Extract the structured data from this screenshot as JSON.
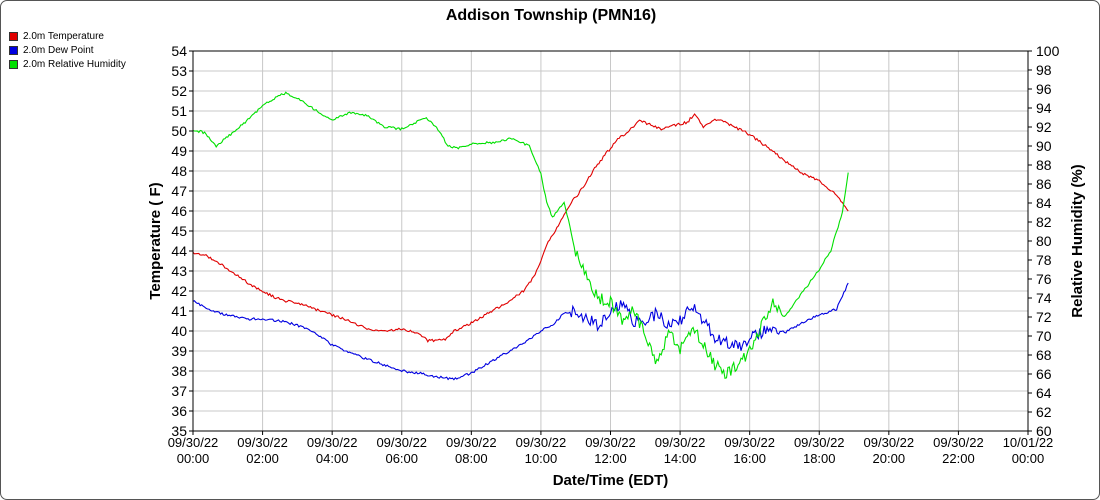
{
  "chart_data": {
    "type": "line",
    "title": "Addison Township (PMN16)",
    "xlabel": "Date/Time (EDT)",
    "ylabel": "Temperature ( F)",
    "y2label": "Relative Humidity (%)",
    "ylim": [
      35,
      54
    ],
    "y2lim": [
      60,
      100
    ],
    "xlim": [
      "2022-09-30T00:00",
      "2022-10-01T00:00"
    ],
    "grid": true,
    "legend_position": "top-left",
    "x_ticks": [
      {
        "l1": "09/30/22",
        "l2": "00:00",
        "t": "2022-09-30T00:00"
      },
      {
        "l1": "09/30/22",
        "l2": "02:00",
        "t": "2022-09-30T02:00"
      },
      {
        "l1": "09/30/22",
        "l2": "04:00",
        "t": "2022-09-30T04:00"
      },
      {
        "l1": "09/30/22",
        "l2": "06:00",
        "t": "2022-09-30T06:00"
      },
      {
        "l1": "09/30/22",
        "l2": "08:00",
        "t": "2022-09-30T08:00"
      },
      {
        "l1": "09/30/22",
        "l2": "10:00",
        "t": "2022-09-30T10:00"
      },
      {
        "l1": "09/30/22",
        "l2": "12:00",
        "t": "2022-09-30T12:00"
      },
      {
        "l1": "09/30/22",
        "l2": "14:00",
        "t": "2022-09-30T14:00"
      },
      {
        "l1": "09/30/22",
        "l2": "16:00",
        "t": "2022-09-30T16:00"
      },
      {
        "l1": "09/30/22",
        "l2": "18:00",
        "t": "2022-09-30T18:00"
      },
      {
        "l1": "09/30/22",
        "l2": "20:00",
        "t": "2022-09-30T20:00"
      },
      {
        "l1": "09/30/22",
        "l2": "22:00",
        "t": "2022-09-30T22:00"
      },
      {
        "l1": "10/01/22",
        "l2": "00:00",
        "t": "2022-10-01T00:00"
      }
    ],
    "y_ticks": [
      35,
      36,
      37,
      38,
      39,
      40,
      41,
      42,
      43,
      44,
      45,
      46,
      47,
      48,
      49,
      50,
      51,
      52,
      53,
      54
    ],
    "y2_ticks": [
      60,
      62,
      64,
      66,
      68,
      70,
      72,
      74,
      76,
      78,
      80,
      82,
      84,
      86,
      88,
      90,
      92,
      94,
      96,
      98,
      100
    ],
    "series": [
      {
        "name": "2.0m Temperature",
        "axis": "left",
        "color": "#e00000",
        "points": [
          [
            "2022-09-30T00:00",
            43.9
          ],
          [
            "2022-09-30T00:20",
            43.8
          ],
          [
            "2022-09-30T00:40",
            43.5
          ],
          [
            "2022-09-30T01:00",
            43.1
          ],
          [
            "2022-09-30T01:20",
            42.7
          ],
          [
            "2022-09-30T01:40",
            42.3
          ],
          [
            "2022-09-30T02:00",
            42.0
          ],
          [
            "2022-09-30T02:20",
            41.7
          ],
          [
            "2022-09-30T02:40",
            41.5
          ],
          [
            "2022-09-30T03:00",
            41.4
          ],
          [
            "2022-09-30T03:30",
            41.1
          ],
          [
            "2022-09-30T04:00",
            40.8
          ],
          [
            "2022-09-30T04:30",
            40.5
          ],
          [
            "2022-09-30T05:00",
            40.1
          ],
          [
            "2022-09-30T05:30",
            40.0
          ],
          [
            "2022-09-30T06:00",
            40.1
          ],
          [
            "2022-09-30T06:30",
            39.9
          ],
          [
            "2022-09-30T06:45",
            39.5
          ],
          [
            "2022-09-30T07:15",
            39.6
          ],
          [
            "2022-09-30T07:30",
            40.0
          ],
          [
            "2022-09-30T08:00",
            40.4
          ],
          [
            "2022-09-30T08:30",
            40.9
          ],
          [
            "2022-09-30T09:00",
            41.4
          ],
          [
            "2022-09-30T09:30",
            42.0
          ],
          [
            "2022-09-30T09:50",
            42.8
          ],
          [
            "2022-09-30T10:10",
            44.3
          ],
          [
            "2022-09-30T10:30",
            45.3
          ],
          [
            "2022-09-30T10:50",
            46.3
          ],
          [
            "2022-09-30T11:10",
            47.1
          ],
          [
            "2022-09-30T11:30",
            48.0
          ],
          [
            "2022-09-30T11:50",
            48.8
          ],
          [
            "2022-09-30T12:10",
            49.5
          ],
          [
            "2022-09-30T12:30",
            50.0
          ],
          [
            "2022-09-30T12:50",
            50.5
          ],
          [
            "2022-09-30T13:10",
            50.3
          ],
          [
            "2022-09-30T13:30",
            50.1
          ],
          [
            "2022-09-30T13:50",
            50.3
          ],
          [
            "2022-09-30T14:10",
            50.4
          ],
          [
            "2022-09-30T14:25",
            50.8
          ],
          [
            "2022-09-30T14:40",
            50.2
          ],
          [
            "2022-09-30T15:00",
            50.6
          ],
          [
            "2022-09-30T15:30",
            50.3
          ],
          [
            "2022-09-30T16:00",
            49.8
          ],
          [
            "2022-09-30T16:30",
            49.2
          ],
          [
            "2022-09-30T17:00",
            48.5
          ],
          [
            "2022-09-30T17:30",
            47.9
          ],
          [
            "2022-09-30T18:00",
            47.5
          ],
          [
            "2022-09-30T18:30",
            46.8
          ],
          [
            "2022-09-30T18:50",
            46.0
          ]
        ]
      },
      {
        "name": "2.0m Dew Point",
        "axis": "left",
        "color": "#0000e0",
        "points": [
          [
            "2022-09-30T00:00",
            41.5
          ],
          [
            "2022-09-30T00:30",
            41.0
          ],
          [
            "2022-09-30T01:00",
            40.8
          ],
          [
            "2022-09-30T01:30",
            40.6
          ],
          [
            "2022-09-30T02:00",
            40.6
          ],
          [
            "2022-09-30T02:30",
            40.5
          ],
          [
            "2022-09-30T03:00",
            40.3
          ],
          [
            "2022-09-30T03:30",
            39.9
          ],
          [
            "2022-09-30T04:00",
            39.3
          ],
          [
            "2022-09-30T04:30",
            38.9
          ],
          [
            "2022-09-30T05:00",
            38.6
          ],
          [
            "2022-09-30T05:30",
            38.3
          ],
          [
            "2022-09-30T06:00",
            38.0
          ],
          [
            "2022-09-30T06:30",
            37.9
          ],
          [
            "2022-09-30T07:00",
            37.7
          ],
          [
            "2022-09-30T07:30",
            37.6
          ],
          [
            "2022-09-30T08:00",
            37.9
          ],
          [
            "2022-09-30T08:30",
            38.4
          ],
          [
            "2022-09-30T09:00",
            38.9
          ],
          [
            "2022-09-30T09:30",
            39.4
          ],
          [
            "2022-09-30T10:00",
            40.0
          ],
          [
            "2022-09-30T10:20",
            40.3
          ],
          [
            "2022-09-30T10:40",
            40.9
          ],
          [
            "2022-09-30T11:00",
            41.0
          ],
          [
            "2022-09-30T11:20",
            40.6
          ],
          [
            "2022-09-30T11:40",
            40.3
          ],
          [
            "2022-09-30T12:00",
            41.0
          ],
          [
            "2022-09-30T12:20",
            41.3
          ],
          [
            "2022-09-30T12:40",
            40.5
          ],
          [
            "2022-09-30T13:00",
            40.4
          ],
          [
            "2022-09-30T13:20",
            40.9
          ],
          [
            "2022-09-30T13:40",
            40.2
          ],
          [
            "2022-09-30T14:00",
            40.5
          ],
          [
            "2022-09-30T14:20",
            41.2
          ],
          [
            "2022-09-30T14:40",
            40.6
          ],
          [
            "2022-09-30T15:00",
            39.7
          ],
          [
            "2022-09-30T15:20",
            39.4
          ],
          [
            "2022-09-30T15:40",
            39.2
          ],
          [
            "2022-09-30T16:00",
            39.6
          ],
          [
            "2022-09-30T16:20",
            39.9
          ],
          [
            "2022-09-30T16:40",
            40.3
          ],
          [
            "2022-09-30T17:00",
            39.9
          ],
          [
            "2022-09-30T17:30",
            40.4
          ],
          [
            "2022-09-30T18:00",
            40.8
          ],
          [
            "2022-09-30T18:30",
            41.1
          ],
          [
            "2022-09-30T18:50",
            42.4
          ]
        ]
      },
      {
        "name": "2.0m Relative Humidity",
        "axis": "right",
        "color": "#00e000",
        "points": [
          [
            "2022-09-30T00:00",
            91.7
          ],
          [
            "2022-09-30T00:20",
            91.4
          ],
          [
            "2022-09-30T00:40",
            90.0
          ],
          [
            "2022-09-30T01:00",
            91.0
          ],
          [
            "2022-09-30T01:20",
            92.0
          ],
          [
            "2022-09-30T01:40",
            93.0
          ],
          [
            "2022-09-30T02:00",
            94.3
          ],
          [
            "2022-09-30T02:20",
            95.0
          ],
          [
            "2022-09-30T02:40",
            95.6
          ],
          [
            "2022-09-30T03:00",
            95.0
          ],
          [
            "2022-09-30T03:30",
            93.8
          ],
          [
            "2022-09-30T04:00",
            92.8
          ],
          [
            "2022-09-30T04:30",
            93.5
          ],
          [
            "2022-09-30T05:00",
            93.2
          ],
          [
            "2022-09-30T05:30",
            92.0
          ],
          [
            "2022-09-30T06:00",
            91.8
          ],
          [
            "2022-09-30T06:40",
            93.0
          ],
          [
            "2022-09-30T07:00",
            92.0
          ],
          [
            "2022-09-30T07:20",
            90.0
          ],
          [
            "2022-09-30T07:40",
            89.8
          ],
          [
            "2022-09-30T08:00",
            90.2
          ],
          [
            "2022-09-30T08:40",
            90.4
          ],
          [
            "2022-09-30T09:10",
            90.8
          ],
          [
            "2022-09-30T09:40",
            90.0
          ],
          [
            "2022-09-30T10:00",
            87.0
          ],
          [
            "2022-09-30T10:10",
            84.0
          ],
          [
            "2022-09-30T10:20",
            82.5
          ],
          [
            "2022-09-30T10:40",
            84.0
          ],
          [
            "2022-09-30T11:00",
            79.0
          ],
          [
            "2022-09-30T11:20",
            76.0
          ],
          [
            "2022-09-30T11:40",
            74.0
          ],
          [
            "2022-09-30T12:00",
            73.5
          ],
          [
            "2022-09-30T12:20",
            71.5
          ],
          [
            "2022-09-30T12:40",
            72.8
          ],
          [
            "2022-09-30T13:00",
            70.0
          ],
          [
            "2022-09-30T13:20",
            67.0
          ],
          [
            "2022-09-30T13:40",
            70.5
          ],
          [
            "2022-09-30T14:00",
            68.5
          ],
          [
            "2022-09-30T14:20",
            71.0
          ],
          [
            "2022-09-30T14:40",
            69.0
          ],
          [
            "2022-09-30T15:00",
            67.0
          ],
          [
            "2022-09-30T15:20",
            66.0
          ],
          [
            "2022-09-30T15:40",
            67.0
          ],
          [
            "2022-09-30T16:00",
            68.5
          ],
          [
            "2022-09-30T16:20",
            71.0
          ],
          [
            "2022-09-30T16:40",
            73.5
          ],
          [
            "2022-09-30T17:00",
            72.0
          ],
          [
            "2022-09-30T17:30",
            74.5
          ],
          [
            "2022-09-30T18:00",
            77.0
          ],
          [
            "2022-09-30T18:20",
            79.0
          ],
          [
            "2022-09-30T18:40",
            83.0
          ],
          [
            "2022-09-30T18:50",
            87.2
          ]
        ]
      }
    ]
  }
}
